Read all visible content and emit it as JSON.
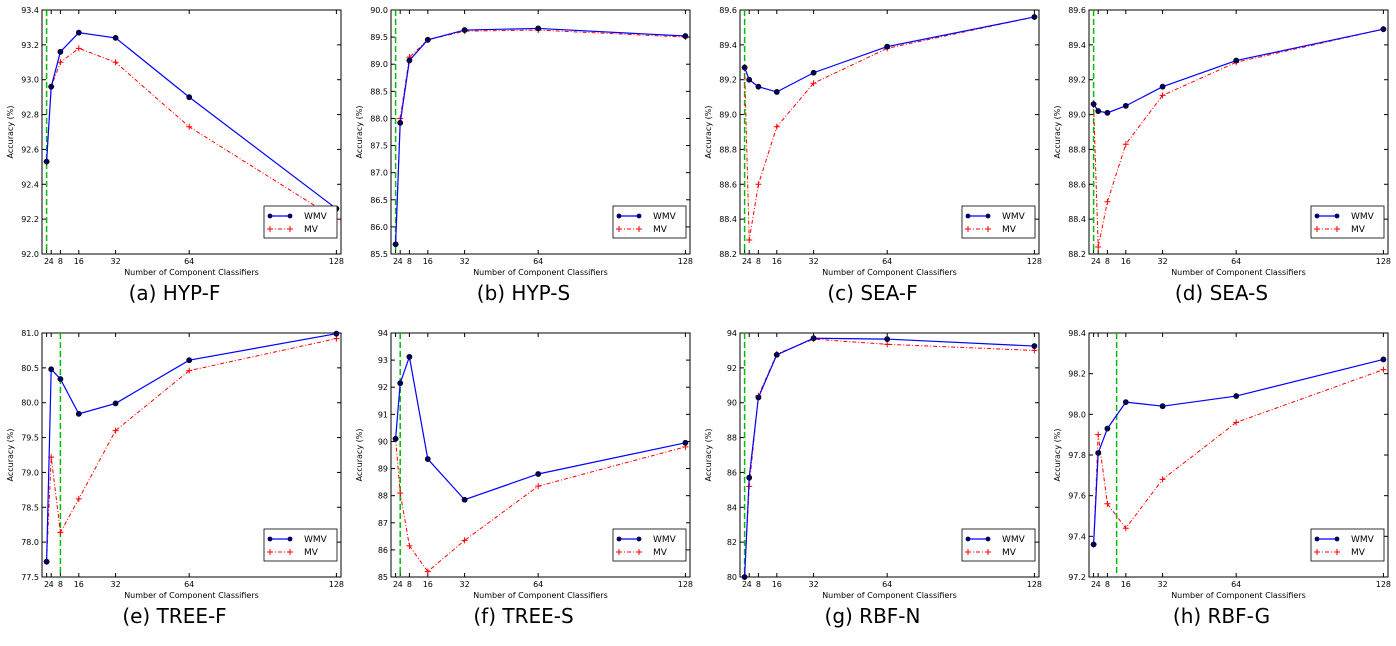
{
  "figure": {
    "xlabel": "Number of Component Classifiers",
    "ylabel": "Accuracy (%)",
    "legend_wmv": "WMV",
    "legend_mv": "MV"
  },
  "colors": {
    "wmv": "#0000ff",
    "mv": "#ff0000",
    "vline": "#00bb00"
  },
  "chart_data": [
    {
      "type": "line",
      "caption": "(a) HYP-F",
      "x": [
        2,
        4,
        8,
        16,
        32,
        64,
        128
      ],
      "xticks": [
        2,
        4,
        8,
        16,
        32,
        64,
        128
      ],
      "xlim": [
        0,
        130
      ],
      "ylim": [
        92.0,
        93.4
      ],
      "yticks": [
        92.0,
        92.2,
        92.4,
        92.6,
        92.8,
        93.0,
        93.2,
        93.4
      ],
      "ydec": 1,
      "vline": 2,
      "xlabel": "Number of Component Classifiers",
      "ylabel": "Accuracy (%)",
      "grid": false,
      "legend": "lower-right",
      "series": [
        {
          "name": "WMV",
          "values": [
            92.53,
            92.96,
            93.16,
            93.27,
            93.24,
            92.9,
            92.26
          ]
        },
        {
          "name": "MV",
          "values": [
            92.53,
            92.96,
            93.1,
            93.18,
            93.1,
            92.73,
            92.2
          ]
        }
      ]
    },
    {
      "type": "line",
      "caption": "(b) HYP-S",
      "x": [
        2,
        4,
        8,
        16,
        32,
        64,
        128
      ],
      "xticks": [
        2,
        4,
        8,
        16,
        32,
        64,
        128
      ],
      "xlim": [
        0,
        130
      ],
      "ylim": [
        85.5,
        90.0
      ],
      "yticks": [
        85.5,
        86.0,
        86.5,
        87.0,
        87.5,
        88.0,
        88.5,
        89.0,
        89.5,
        90.0
      ],
      "ydec": 1,
      "vline": 2,
      "xlabel": "Number of Component Classifiers",
      "ylabel": "Accuracy (%)",
      "grid": false,
      "legend": "lower-right",
      "series": [
        {
          "name": "WMV",
          "values": [
            85.68,
            87.92,
            89.07,
            89.45,
            89.63,
            89.66,
            89.52
          ]
        },
        {
          "name": "MV",
          "values": [
            85.68,
            88.0,
            89.13,
            89.45,
            89.61,
            89.63,
            89.5
          ]
        }
      ]
    },
    {
      "type": "line",
      "caption": "(c) SEA-F",
      "x": [
        2,
        4,
        8,
        16,
        32,
        64,
        128
      ],
      "xticks": [
        2,
        4,
        8,
        16,
        32,
        64,
        128
      ],
      "xlim": [
        0,
        130
      ],
      "ylim": [
        88.2,
        89.6
      ],
      "yticks": [
        88.2,
        88.4,
        88.6,
        88.8,
        89.0,
        89.2,
        89.4,
        89.6
      ],
      "ydec": 1,
      "vline": 2,
      "xlabel": "Number of Component Classifiers",
      "ylabel": "Accuracy (%)",
      "grid": false,
      "legend": "lower-right",
      "series": [
        {
          "name": "WMV",
          "values": [
            89.27,
            89.2,
            89.16,
            89.13,
            89.24,
            89.39,
            89.56
          ]
        },
        {
          "name": "MV",
          "values": [
            89.27,
            88.28,
            88.6,
            88.93,
            89.18,
            89.38,
            89.56
          ]
        }
      ]
    },
    {
      "type": "line",
      "caption": "(d) SEA-S",
      "x": [
        2,
        4,
        8,
        16,
        32,
        64,
        128
      ],
      "xticks": [
        2,
        4,
        8,
        16,
        32,
        64,
        128
      ],
      "xlim": [
        0,
        130
      ],
      "ylim": [
        88.2,
        89.6
      ],
      "yticks": [
        88.2,
        88.4,
        88.6,
        88.8,
        89.0,
        89.2,
        89.4,
        89.6
      ],
      "ydec": 1,
      "vline": 2,
      "xlabel": "Number of Component Classifiers",
      "ylabel": "Accuracy (%)",
      "grid": false,
      "legend": "lower-right",
      "series": [
        {
          "name": "WMV",
          "values": [
            89.06,
            89.02,
            89.01,
            89.05,
            89.16,
            89.31,
            89.49
          ]
        },
        {
          "name": "MV",
          "values": [
            89.06,
            88.24,
            88.5,
            88.83,
            89.11,
            89.3,
            89.49
          ]
        }
      ]
    },
    {
      "type": "line",
      "caption": "(e) TREE-F",
      "x": [
        2,
        4,
        8,
        16,
        32,
        64,
        128
      ],
      "xticks": [
        2,
        4,
        8,
        16,
        32,
        64,
        128
      ],
      "xlim": [
        0,
        130
      ],
      "ylim": [
        77.5,
        81.0
      ],
      "yticks": [
        77.5,
        78.0,
        78.5,
        79.0,
        79.5,
        80.0,
        80.5,
        81.0
      ],
      "ydec": 1,
      "vline": 8,
      "xlabel": "Number of Component Classifiers",
      "ylabel": "Accuracy (%)",
      "grid": false,
      "legend": "lower-right",
      "series": [
        {
          "name": "WMV",
          "values": [
            77.72,
            80.48,
            80.34,
            79.84,
            79.99,
            80.61,
            80.99
          ]
        },
        {
          "name": "MV",
          "values": [
            77.72,
            79.22,
            78.14,
            78.62,
            79.6,
            80.46,
            80.92
          ]
        }
      ]
    },
    {
      "type": "line",
      "caption": "(f) TREE-S",
      "x": [
        2,
        4,
        8,
        16,
        32,
        64,
        128
      ],
      "xticks": [
        2,
        4,
        8,
        16,
        32,
        64,
        128
      ],
      "xlim": [
        0,
        130
      ],
      "ylim": [
        85,
        94
      ],
      "yticks": [
        85,
        86,
        87,
        88,
        89,
        90,
        91,
        92,
        93,
        94
      ],
      "ydec": 0,
      "vline": 4,
      "xlabel": "Number of Component Classifiers",
      "ylabel": "Accuracy (%)",
      "grid": false,
      "legend": "lower-right",
      "series": [
        {
          "name": "WMV",
          "values": [
            90.1,
            92.15,
            93.12,
            89.35,
            87.85,
            88.8,
            89.95
          ]
        },
        {
          "name": "MV",
          "values": [
            90.1,
            88.1,
            86.15,
            85.2,
            86.35,
            88.35,
            89.8
          ]
        }
      ]
    },
    {
      "type": "line",
      "caption": "(g) RBF-N",
      "x": [
        2,
        4,
        8,
        16,
        32,
        64,
        128
      ],
      "xticks": [
        2,
        4,
        8,
        16,
        32,
        64,
        128
      ],
      "xlim": [
        0,
        130
      ],
      "ylim": [
        80,
        94
      ],
      "yticks": [
        80,
        82,
        84,
        86,
        88,
        90,
        92,
        94
      ],
      "ydec": 0,
      "vline": 2,
      "xlabel": "Number of Component Classifiers",
      "ylabel": "Accuracy (%)",
      "grid": false,
      "legend": "lower-right",
      "series": [
        {
          "name": "WMV",
          "values": [
            80.0,
            85.7,
            90.3,
            92.75,
            93.7,
            93.65,
            93.25
          ]
        },
        {
          "name": "MV",
          "values": [
            80.0,
            85.2,
            90.4,
            92.8,
            93.65,
            93.35,
            93.0
          ]
        }
      ]
    },
    {
      "type": "line",
      "caption": "(h) RBF-G",
      "x": [
        2,
        4,
        8,
        16,
        32,
        64,
        128
      ],
      "xticks": [
        2,
        4,
        8,
        16,
        32,
        64,
        128
      ],
      "xlim": [
        0,
        130
      ],
      "ylim": [
        97.2,
        98.4
      ],
      "yticks": [
        97.2,
        97.4,
        97.6,
        97.8,
        98.0,
        98.2,
        98.4
      ],
      "ydec": 1,
      "vline": 12,
      "xlabel": "Number of Component Classifiers",
      "ylabel": "Accuracy (%)",
      "grid": false,
      "legend": "lower-right",
      "series": [
        {
          "name": "WMV",
          "values": [
            97.36,
            97.81,
            97.93,
            98.06,
            98.04,
            98.09,
            98.27
          ]
        },
        {
          "name": "MV",
          "values": [
            97.36,
            97.9,
            97.56,
            97.44,
            97.68,
            97.96,
            98.22
          ]
        }
      ]
    }
  ]
}
